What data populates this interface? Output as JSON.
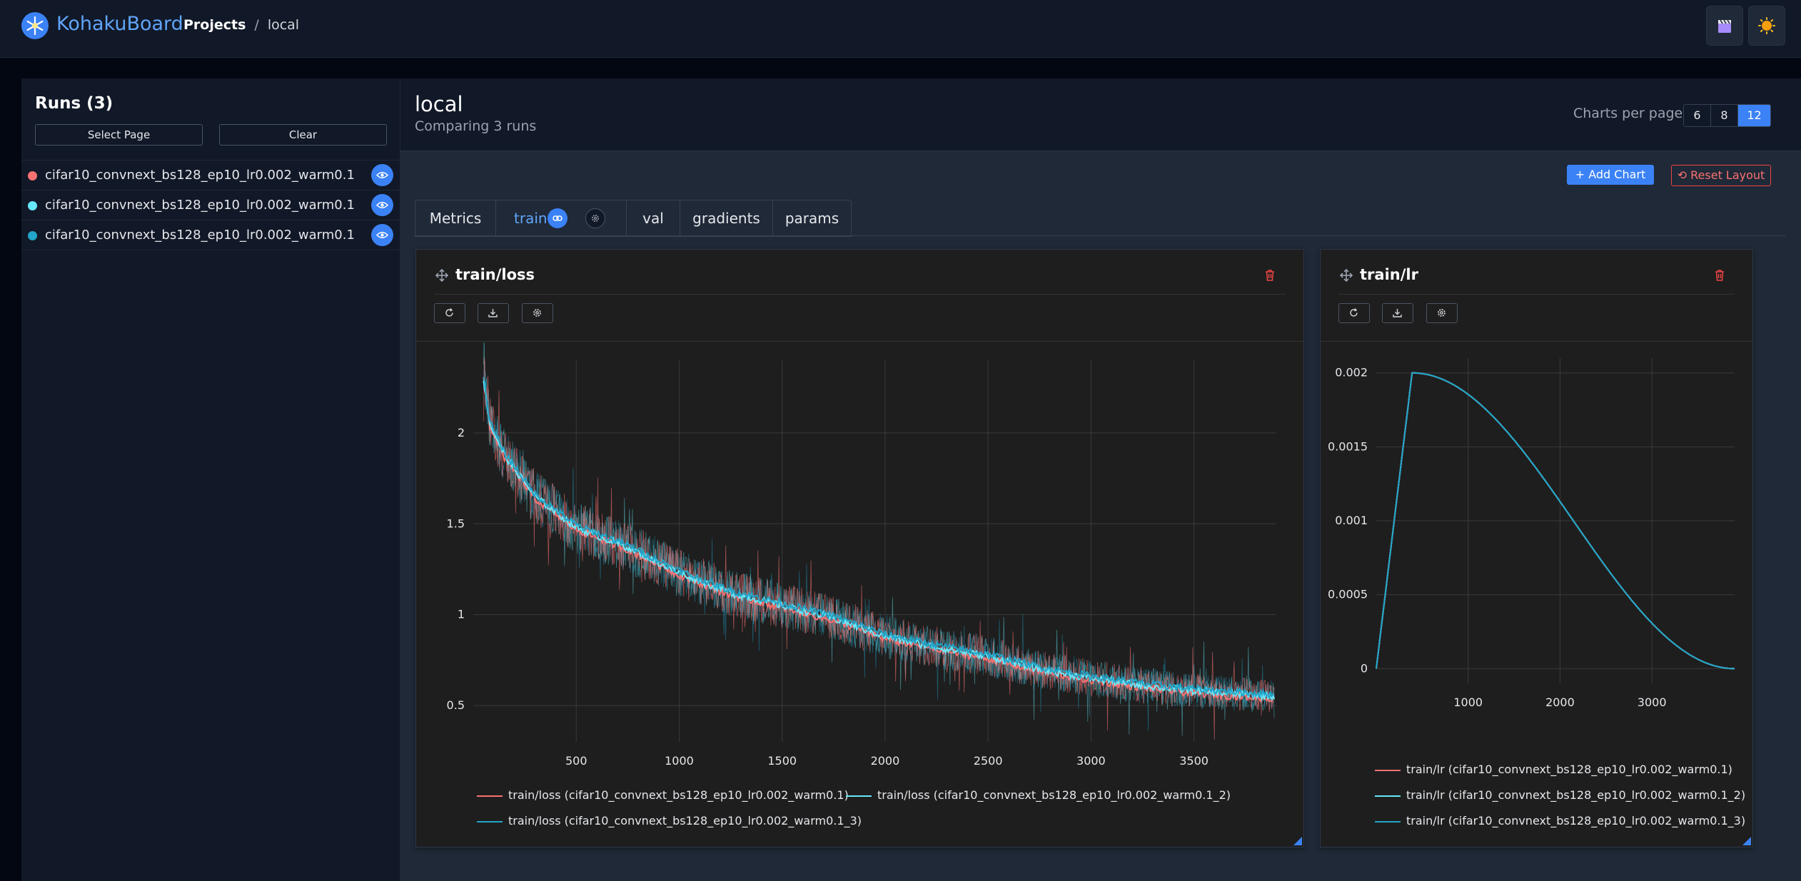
{
  "header": {
    "brand": "KohakuBoard",
    "breadcrumb": {
      "projects": "Projects",
      "separator": "/",
      "current": "local"
    },
    "buttons": [
      {
        "icon": "clapper-icon"
      },
      {
        "icon": "sun-icon"
      }
    ]
  },
  "sidebar": {
    "title": "Runs (3)",
    "select_page": "Select Page",
    "clear": "Clear",
    "runs": [
      {
        "name": "cifar10_convnext_bs128_ep10_lr0.002_warm0.1",
        "color": "#f87171"
      },
      {
        "name": "cifar10_convnext_bs128_ep10_lr0.002_warm0.1",
        "color": "#67e8f9"
      },
      {
        "name": "cifar10_convnext_bs128_ep10_lr0.002_warm0.1",
        "color": "#22a5c9"
      }
    ]
  },
  "main": {
    "title": "local",
    "subtitle": "Comparing 3 runs",
    "charts_per_page_label": "Charts per page:",
    "charts_per_page_options": [
      "6",
      "8",
      "12"
    ],
    "charts_per_page_selected": "12",
    "add_chart": "+ Add Chart",
    "reset_layout": "⟲ Reset Layout",
    "tabs": [
      "Metrics",
      "train",
      "val",
      "gradients",
      "params"
    ],
    "active_tab": "train"
  },
  "colors": {
    "run1": "#f87171",
    "run2": "#67e8f9",
    "run3": "#22a5c9",
    "accent": "#3b82f6",
    "danger": "#ef4444"
  },
  "chart_data": [
    {
      "type": "line",
      "title": "train/loss",
      "xlim": [
        0,
        3900
      ],
      "ylim": [
        0.3,
        2.4
      ],
      "x_ticks": [
        500,
        1000,
        1500,
        2000,
        2500,
        3000,
        3500
      ],
      "y_ticks": [
        0.5,
        1,
        1.5,
        2
      ],
      "x_tick_labels": [
        "500",
        "1000",
        "1500",
        "2000",
        "2500",
        "3000",
        "3500"
      ],
      "y_tick_labels": [
        "0.5",
        "1",
        "1.5",
        "2"
      ],
      "grid": true,
      "legend": "bottom",
      "smoothed_keypoints_x": [
        50,
        80,
        150,
        300,
        500,
        750,
        1000,
        1250,
        1500,
        1750,
        2000,
        2250,
        2500,
        2750,
        3000,
        3250,
        3500,
        3750,
        3890
      ],
      "smoothed_keypoints_y": [
        2.3,
        2.05,
        1.88,
        1.65,
        1.48,
        1.37,
        1.23,
        1.12,
        1.05,
        0.98,
        0.88,
        0.82,
        0.77,
        0.7,
        0.65,
        0.61,
        0.58,
        0.56,
        0.55
      ],
      "series": [
        {
          "name": "train/loss (cifar10_convnext_bs128_ep10_lr0.002_warm0.1)",
          "color": "#f87171"
        },
        {
          "name": "train/loss (cifar10_convnext_bs128_ep10_lr0.002_warm0.1_2)",
          "color": "#67e8f9"
        },
        {
          "name": "train/loss (cifar10_convnext_bs128_ep10_lr0.002_warm0.1_3)",
          "color": "#22a5c9"
        }
      ]
    },
    {
      "type": "line",
      "title": "train/lr",
      "xlim": [
        0,
        3900
      ],
      "ylim": [
        -0.0001,
        0.0021
      ],
      "x_ticks": [
        1000,
        2000,
        3000
      ],
      "y_ticks": [
        0,
        0.0005,
        0.001,
        0.0015,
        0.002
      ],
      "x_tick_labels": [
        "1000",
        "2000",
        "3000"
      ],
      "y_tick_labels": [
        "0",
        "0.0005",
        "0.001",
        "0.0015",
        "0.002"
      ],
      "grid": true,
      "legend": "bottom",
      "lr_schedule": {
        "max_lr": 0.002,
        "warmup_steps": 390,
        "total_steps": 3900,
        "shape": "linear warmup + cosine decay"
      },
      "series": [
        {
          "name": "train/lr (cifar10_convnext_bs128_ep10_lr0.002_warm0.1)",
          "color": "#f87171"
        },
        {
          "name": "train/lr (cifar10_convnext_bs128_ep10_lr0.002_warm0.1_2)",
          "color": "#67e8f9"
        },
        {
          "name": "train/lr (cifar10_convnext_bs128_ep10_lr0.002_warm0.1_3)",
          "color": "#22a5c9"
        }
      ]
    }
  ]
}
